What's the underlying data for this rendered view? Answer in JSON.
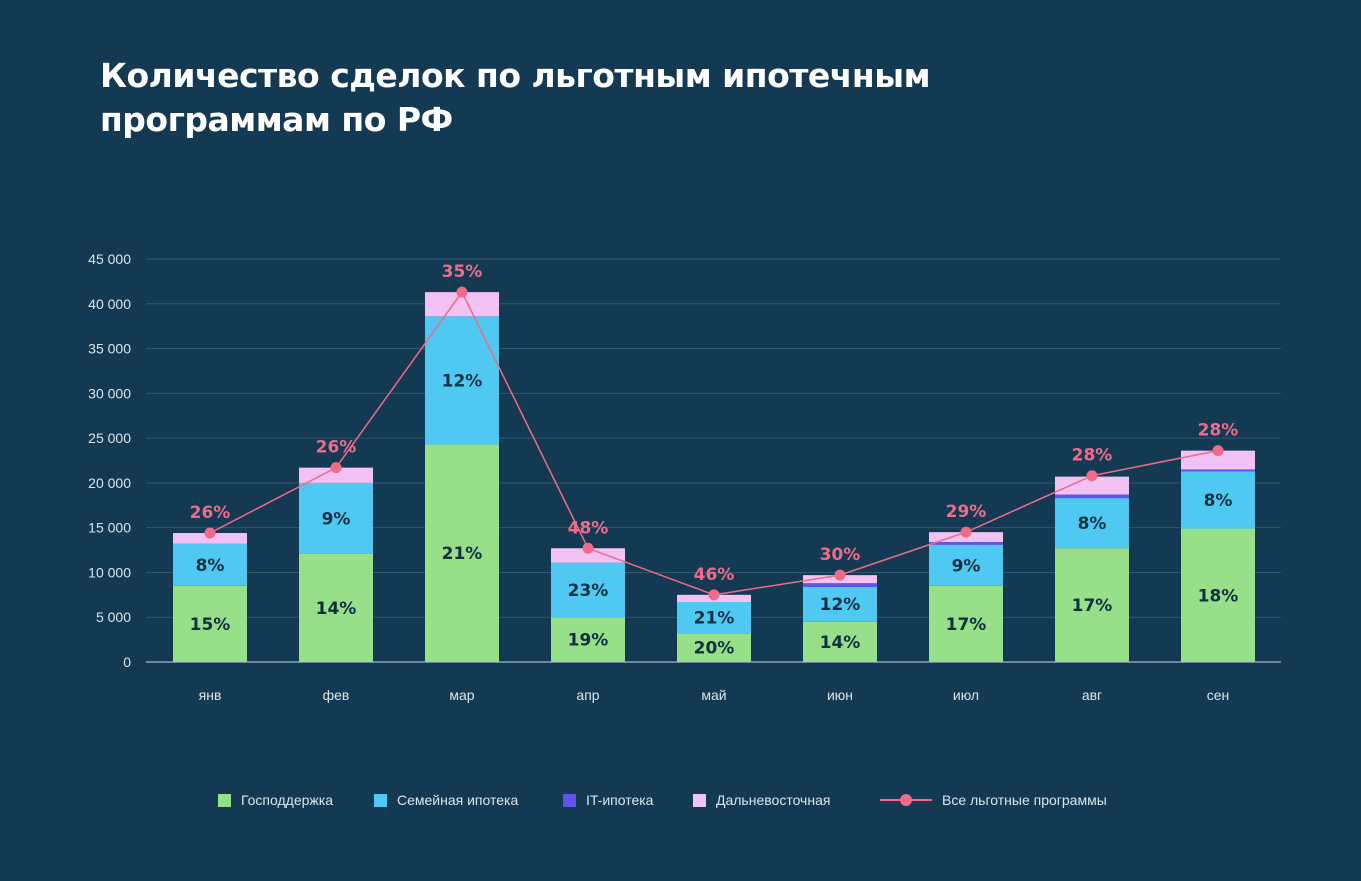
{
  "chart_data": {
    "type": "bar",
    "stacked": true,
    "title": "Количество сделок по льготным ипотечным программам по РФ",
    "title_lines": [
      "Количество сделок по льготным ипотечным",
      "программам по РФ"
    ],
    "xlabel": "",
    "ylabel": "",
    "ylim": [
      0,
      45000
    ],
    "yticks": [
      0,
      5000,
      10000,
      15000,
      20000,
      25000,
      30000,
      35000,
      40000,
      45000
    ],
    "ytick_labels": [
      "0",
      "5 000",
      "10 000",
      "15 000",
      "20 000",
      "25 000",
      "30 000",
      "35 000",
      "40 000",
      "45 000"
    ],
    "grid": true,
    "legend_position": "bottom",
    "categories": [
      "янв",
      "фев",
      "мар",
      "апр",
      "май",
      "июн",
      "июл",
      "авг",
      "сен"
    ],
    "series": [
      {
        "name": "Господдержка",
        "color": "#98df8a",
        "values": [
          8500,
          12100,
          24300,
          5000,
          3200,
          4500,
          8500,
          12700,
          14900
        ],
        "labels": [
          "15%",
          "14%",
          "21%",
          "19%",
          "20%",
          "14%",
          "17%",
          "17%",
          "18%"
        ]
      },
      {
        "name": "Семейная ипотека",
        "color": "#4fc8f2",
        "values": [
          4700,
          7900,
          14300,
          6100,
          3500,
          3900,
          4600,
          5600,
          6400
        ],
        "labels": [
          "8%",
          "9%",
          "12%",
          "23%",
          "21%",
          "12%",
          "9%",
          "8%",
          "8%"
        ]
      },
      {
        "name": "IT-ипотека",
        "color": "#6255e6",
        "values": [
          0,
          0,
          0,
          0,
          0,
          400,
          300,
          400,
          200
        ],
        "labels": []
      },
      {
        "name": "Дальневосточная",
        "color": "#f2c2f5",
        "values": [
          1200,
          1700,
          2700,
          1600,
          800,
          900,
          1100,
          2000,
          2100
        ],
        "labels": []
      }
    ],
    "line_series": {
      "name": "Все льготные программы",
      "color": "#ef6b8a",
      "values": [
        14400,
        21700,
        41300,
        12700,
        7500,
        9700,
        14500,
        20800,
        23600
      ],
      "labels": [
        "26%",
        "26%",
        "35%",
        "48%",
        "46%",
        "30%",
        "29%",
        "28%",
        "28%"
      ]
    }
  }
}
